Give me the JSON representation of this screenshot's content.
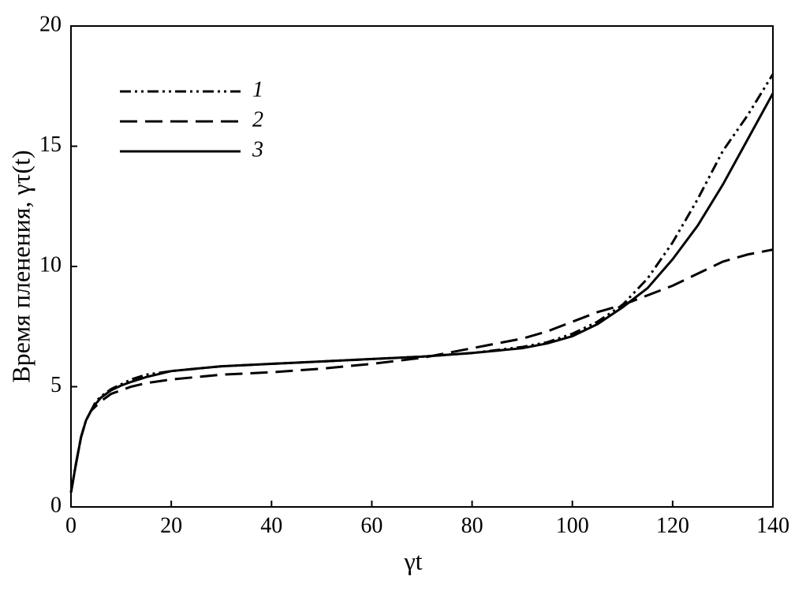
{
  "chart_data": {
    "type": "line",
    "xlabel": "γt",
    "ylabel": "Время пленения, γτ(t)",
    "x": [
      0,
      1,
      2,
      3,
      4,
      5,
      6,
      8,
      10,
      12,
      15,
      20,
      25,
      30,
      40,
      50,
      60,
      70,
      80,
      90,
      95,
      100,
      105,
      110,
      115,
      120,
      125,
      130,
      135,
      140
    ],
    "series": [
      {
        "name": "1",
        "color": "#000000",
        "linestyle": "dashdotdot",
        "values": [
          0.6,
          1.8,
          2.9,
          3.6,
          4.0,
          4.4,
          4.6,
          4.9,
          5.1,
          5.3,
          5.5,
          5.65,
          5.75,
          5.85,
          5.95,
          6.05,
          6.15,
          6.25,
          6.4,
          6.65,
          6.85,
          7.2,
          7.7,
          8.4,
          9.5,
          11.0,
          12.8,
          14.8,
          16.3,
          18.0
        ]
      },
      {
        "name": "2",
        "color": "#000000",
        "linestyle": "dashed",
        "values": [
          0.6,
          1.8,
          2.9,
          3.6,
          4.0,
          4.2,
          4.4,
          4.7,
          4.85,
          5.0,
          5.15,
          5.3,
          5.4,
          5.5,
          5.6,
          5.75,
          5.95,
          6.2,
          6.6,
          7.0,
          7.3,
          7.7,
          8.1,
          8.4,
          8.8,
          9.2,
          9.7,
          10.2,
          10.5,
          10.7
        ]
      },
      {
        "name": "3",
        "color": "#000000",
        "linestyle": "solid",
        "values": [
          0.6,
          1.8,
          2.9,
          3.6,
          4.0,
          4.3,
          4.55,
          4.85,
          5.05,
          5.2,
          5.4,
          5.65,
          5.75,
          5.85,
          5.95,
          6.05,
          6.15,
          6.25,
          6.4,
          6.6,
          6.8,
          7.1,
          7.6,
          8.3,
          9.1,
          10.3,
          11.7,
          13.4,
          15.3,
          17.2
        ]
      }
    ],
    "xlim": [
      0,
      140
    ],
    "xticks": [
      0,
      20,
      40,
      60,
      80,
      100,
      120,
      140
    ],
    "ylim": [
      0,
      20
    ],
    "yticks": [
      0,
      5,
      10,
      15,
      20
    ],
    "grid": false,
    "legend": "upper left"
  }
}
